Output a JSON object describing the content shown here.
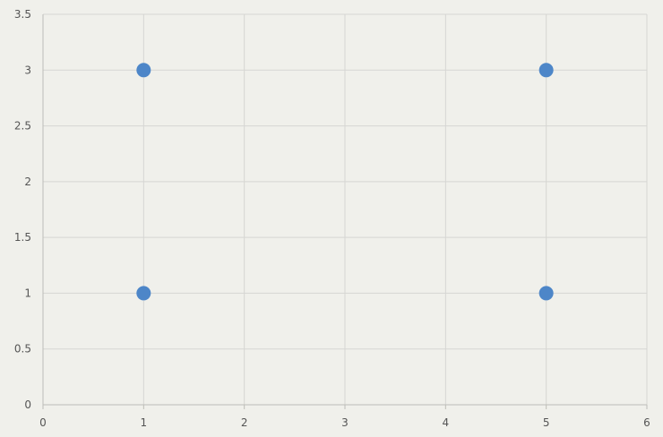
{
  "chart_data": {
    "type": "scatter",
    "title": "",
    "xlabel": "",
    "ylabel": "",
    "xlim": [
      0,
      6
    ],
    "ylim": [
      0,
      3.5
    ],
    "x_ticks": [
      "0",
      "1",
      "2",
      "3",
      "4",
      "5",
      "6"
    ],
    "y_ticks": [
      "0",
      "0.5",
      "1",
      "1.5",
      "2",
      "2.5",
      "3",
      "3.5"
    ],
    "grid": true,
    "legend": "none",
    "series": [
      {
        "color": "#4d86c8",
        "points": [
          {
            "x": 1,
            "y": 3
          },
          {
            "x": 5,
            "y": 3
          },
          {
            "x": 1,
            "y": 1
          },
          {
            "x": 5,
            "y": 1
          }
        ]
      }
    ],
    "background_color": "#f0f0eb",
    "grid_color": "#d6d6d3"
  }
}
